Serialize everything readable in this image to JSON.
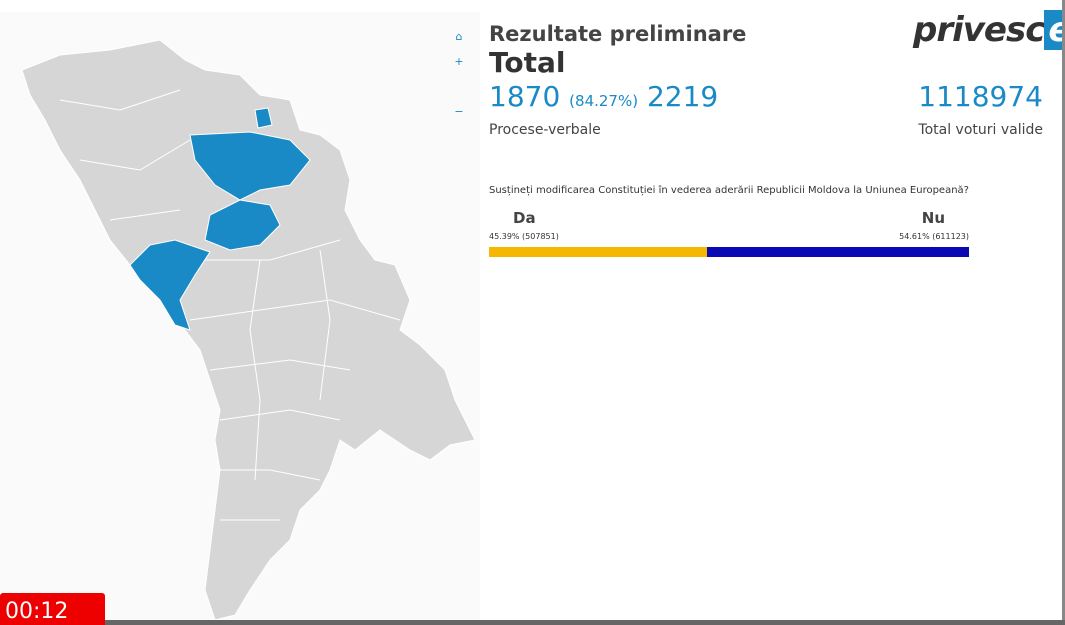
{
  "header": {
    "subtitle": "Rezultate preliminare",
    "title": "Total"
  },
  "stats": {
    "counted": "1870",
    "counted_percent": "(84.27%)",
    "total": "2219",
    "counted_label": "Procese-verbale",
    "valid_votes": "1118974",
    "valid_votes_label": "Total voturi valide"
  },
  "question": "Susțineți modificarea Constituției în vederea aderării Republicii Moldova la Uniunea Europeană?",
  "options": [
    {
      "name": "Da",
      "share": 45.39,
      "label": "45.39% (507851)",
      "color": "#f5b800"
    },
    {
      "name": "Nu",
      "share": 54.61,
      "label": "54.61% (611123)",
      "color": "#0a0ab5"
    }
  ],
  "logo": {
    "text": "privesc",
    "suffix": "eu"
  },
  "timer": "00:12"
}
